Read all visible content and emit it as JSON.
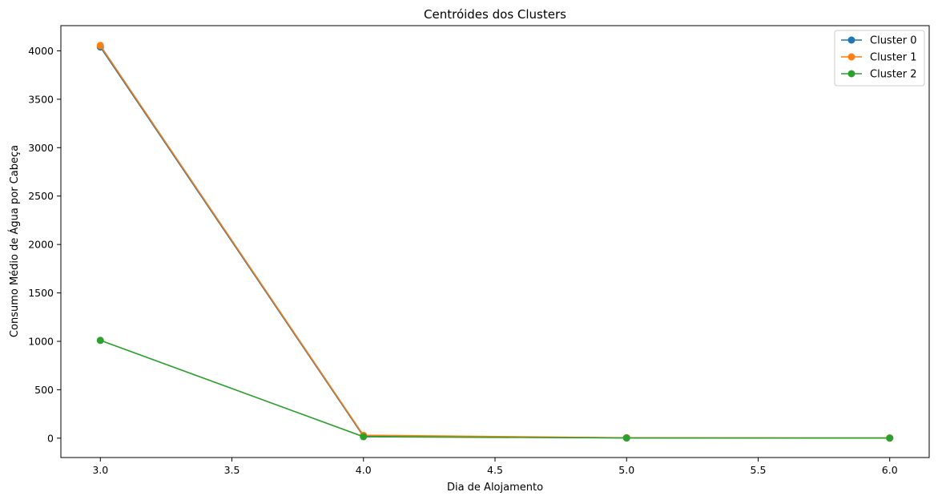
{
  "chart_data": {
    "type": "line",
    "title": "Centróides dos Clusters",
    "xlabel": "Dia de Alojamento",
    "ylabel": "Consumo Médio de Água por Cabeça",
    "xlim": [
      2.85,
      6.15
    ],
    "ylim": [
      -200,
      4260
    ],
    "xticks": [
      3.0,
      3.5,
      4.0,
      4.5,
      5.0,
      5.5,
      6.0
    ],
    "xtick_labels": [
      "3.0",
      "3.5",
      "4.0",
      "4.5",
      "5.0",
      "5.5",
      "6.0"
    ],
    "yticks": [
      0,
      500,
      1000,
      1500,
      2000,
      2500,
      3000,
      3500,
      4000
    ],
    "ytick_labels": [
      "0",
      "500",
      "1000",
      "1500",
      "2000",
      "2500",
      "3000",
      "3500",
      "4000"
    ],
    "grid": false,
    "legend_position": "top-right",
    "x": [
      3.0,
      4.0,
      5.0,
      6.0
    ],
    "series": [
      {
        "name": "Cluster 0",
        "color": "#1f77b4",
        "values": [
          4040,
          20,
          3,
          1
        ]
      },
      {
        "name": "Cluster 1",
        "color": "#ff7f0e",
        "values": [
          4055,
          30,
          4,
          2
        ]
      },
      {
        "name": "Cluster 2",
        "color": "#2ca02c",
        "values": [
          1010,
          15,
          2,
          1
        ]
      }
    ]
  }
}
